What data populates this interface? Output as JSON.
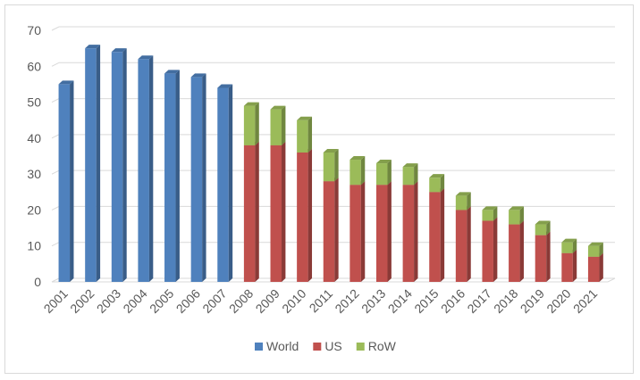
{
  "chart_data": {
    "type": "bar",
    "stacked": true,
    "categories": [
      "2001",
      "2002",
      "2003",
      "2004",
      "2005",
      "2006",
      "2007",
      "2008",
      "2009",
      "2010",
      "2011",
      "2012",
      "2013",
      "2014",
      "2015",
      "2016",
      "2017",
      "2018",
      "2019",
      "2020",
      "2021"
    ],
    "series": [
      {
        "name": "World",
        "color": "#4f81bd",
        "values": [
          55,
          65,
          64,
          62,
          58,
          57,
          54,
          0,
          0,
          0,
          0,
          0,
          0,
          0,
          0,
          0,
          0,
          0,
          0,
          0,
          0
        ]
      },
      {
        "name": "US",
        "color": "#c0504d",
        "values": [
          0,
          0,
          0,
          0,
          0,
          0,
          0,
          38,
          38,
          36,
          28,
          27,
          27,
          27,
          25,
          20,
          17,
          16,
          13,
          8,
          7
        ]
      },
      {
        "name": "RoW",
        "color": "#9bbb59",
        "values": [
          0,
          0,
          0,
          0,
          0,
          0,
          0,
          11,
          10,
          9,
          8,
          7,
          6,
          5,
          4,
          4,
          3,
          4,
          3,
          3,
          3
        ]
      }
    ],
    "yticks": [
      "0",
      "10",
      "20",
      "30",
      "40",
      "50",
      "60",
      "70"
    ],
    "ylim": [
      0,
      70
    ],
    "grid": true,
    "legend": "bottom",
    "title": "",
    "xlabel": "",
    "ylabel": ""
  }
}
